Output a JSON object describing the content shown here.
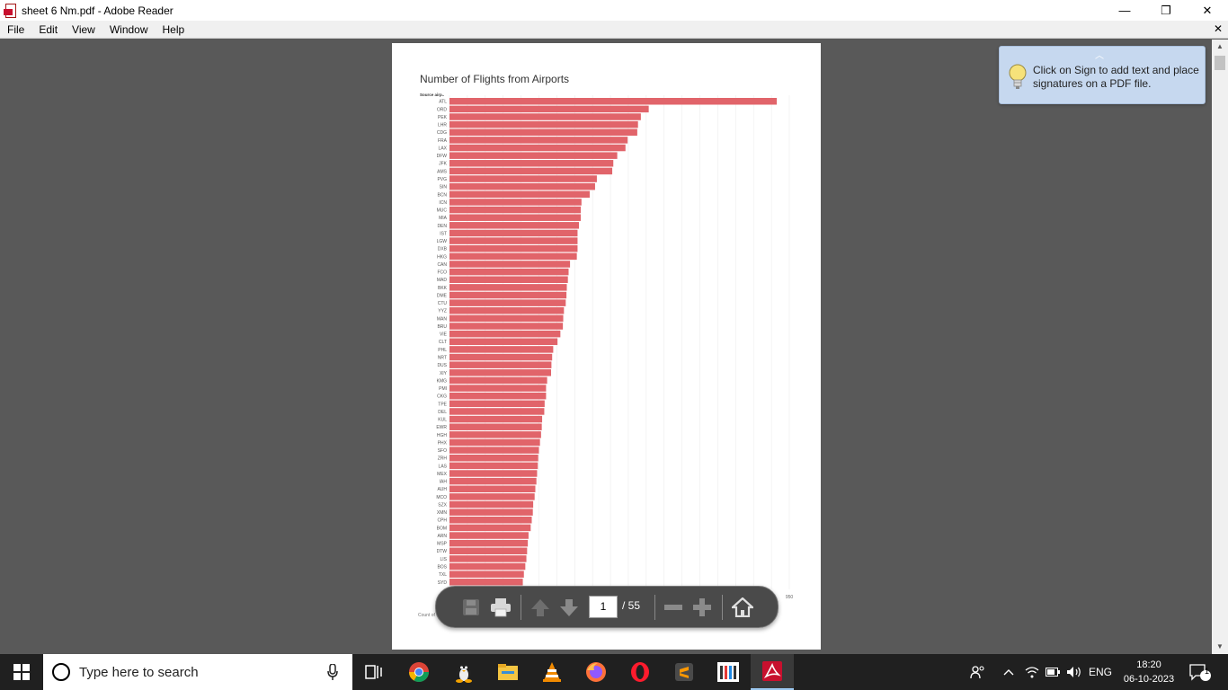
{
  "window": {
    "title": "sheet 6 Nm.pdf - Adobe Reader",
    "controls": {
      "minimize": "—",
      "restore": "❐",
      "close": "✕"
    }
  },
  "menu": {
    "items": [
      "File",
      "Edit",
      "View",
      "Window",
      "Help"
    ],
    "close": "✕"
  },
  "tooltip": {
    "text": "Click on Sign to add text and place signatures on a PDF file."
  },
  "toolbar": {
    "current_page": "1",
    "total_pages": "/ 55"
  },
  "taskbar": {
    "search_placeholder": "Type here to search",
    "language": "ENG",
    "time": "18:20",
    "date": "06-10-2023",
    "notification_count": "1"
  },
  "chart_data": {
    "type": "bar",
    "orientation": "horizontal",
    "title": "Number of Flights from Airports",
    "column_header": "Source airp..",
    "categories": [
      "ATL",
      "ORD",
      "PEK",
      "LHR",
      "CDG",
      "FRA",
      "LAX",
      "DFW",
      "JFK",
      "AMS",
      "PVG",
      "SIN",
      "BCN",
      "ICN",
      "MUC",
      "MIA",
      "DEN",
      "IST",
      "LGW",
      "DXB",
      "HKG",
      "CAN",
      "FCO",
      "MAD",
      "BKK",
      "DME",
      "CTU",
      "YYZ",
      "MAN",
      "BRU",
      "VIE",
      "CLT",
      "PHL",
      "NRT",
      "DUS",
      "XIY",
      "KMG",
      "PMI",
      "CKG",
      "TPE",
      "DEL",
      "KUL",
      "EWR",
      "HGH",
      "PHX",
      "SFO",
      "ZRH",
      "LAS",
      "MEX",
      "IAH",
      "AUH",
      "MCO",
      "SZX",
      "XMN",
      "CPH",
      "BOM",
      "ARN",
      "MSP",
      "DTW",
      "LIS",
      "BOS",
      "TXL",
      "SYD"
    ],
    "values": [
      915,
      557,
      535,
      527,
      525,
      498,
      492,
      469,
      458,
      455,
      412,
      407,
      392,
      369,
      367,
      367,
      362,
      358,
      358,
      358,
      356,
      337,
      333,
      331,
      328,
      327,
      325,
      320,
      318,
      317,
      310,
      302,
      290,
      287,
      285,
      284,
      273,
      270,
      270,
      266,
      265,
      259,
      258,
      256,
      253,
      250,
      248,
      247,
      245,
      243,
      240,
      238,
      234,
      233,
      230,
      227,
      221,
      219,
      217,
      215,
      212,
      208,
      205
    ],
    "xlim": [
      0,
      950
    ],
    "x_ticks": [
      950
    ],
    "grid": true,
    "bar_color": "#e1646a",
    "footer_visible_start": "Count of"
  }
}
